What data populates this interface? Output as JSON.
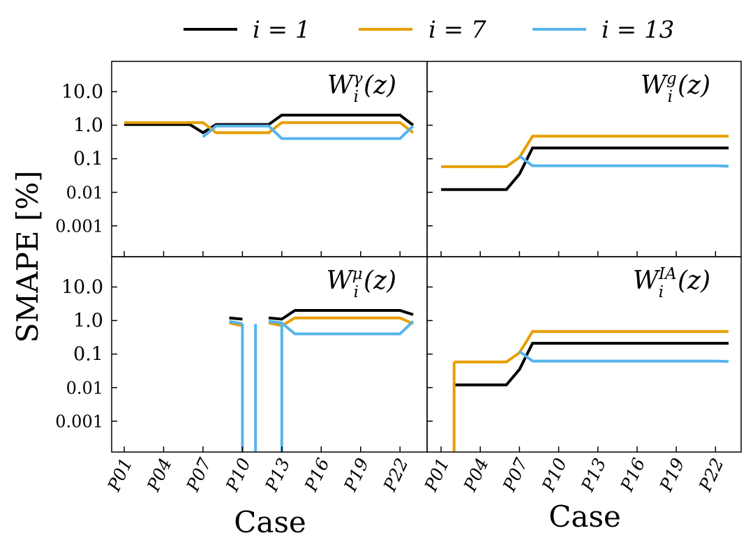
{
  "legend": [
    {
      "label": "i = 1",
      "color": "#000000"
    },
    {
      "label": "i = 7",
      "color": "#E69F00"
    },
    {
      "label": "i = 13",
      "color": "#56B4E9"
    }
  ],
  "ylabel": "SMAPE [%]",
  "xlabel": "Case",
  "chart_data": {
    "type": "line",
    "yscale": "log",
    "ylim": [
      0.00012,
      80
    ],
    "yticks": [
      {
        "v": 10,
        "label": "10.0"
      },
      {
        "v": 1,
        "label": "1.0"
      },
      {
        "v": 0.1,
        "label": "0.1"
      },
      {
        "v": 0.01,
        "label": "0.01"
      },
      {
        "v": 0.001,
        "label": "0.001"
      }
    ],
    "x_categories": [
      "P01",
      "P02",
      "P03",
      "P04",
      "P05",
      "P06",
      "P07",
      "P08",
      "P09",
      "P10",
      "P11",
      "P12",
      "P13",
      "P14",
      "P15",
      "P16",
      "P17",
      "P18",
      "P19",
      "P20",
      "P21",
      "P22",
      "P23"
    ],
    "xtick_labels": [
      "P01",
      "P04",
      "P07",
      "P10",
      "P13",
      "P16",
      "P19",
      "P22"
    ],
    "panels": [
      {
        "id": "gamma",
        "title_base": "W",
        "title_sup": "γ",
        "title_sub": "i",
        "title_tail": "(z)",
        "series": [
          {
            "name": "i = 1",
            "color": "#000000",
            "values": [
              1.05,
              1.05,
              1.05,
              1.05,
              1.05,
              1.05,
              0.6,
              1.05,
              1.05,
              1.05,
              1.05,
              1.05,
              2.0,
              2.0,
              2.0,
              2.0,
              2.0,
              2.0,
              2.0,
              2.0,
              2.0,
              2.0,
              1.0
            ]
          },
          {
            "name": "i = 7",
            "color": "#E69F00",
            "values": [
              1.2,
              1.2,
              1.2,
              1.2,
              1.2,
              1.2,
              1.2,
              0.6,
              0.6,
              0.6,
              0.6,
              0.6,
              1.2,
              1.2,
              1.2,
              1.2,
              1.2,
              1.2,
              1.2,
              1.2,
              1.2,
              1.2,
              0.6
            ]
          },
          {
            "name": "i = 13",
            "color": "#56B4E9",
            "values": [
              null,
              null,
              null,
              null,
              null,
              null,
              0.45,
              0.95,
              0.95,
              0.95,
              0.95,
              0.95,
              0.4,
              0.4,
              0.4,
              0.4,
              0.4,
              0.4,
              0.4,
              0.4,
              0.4,
              0.4,
              0.95
            ]
          }
        ]
      },
      {
        "id": "g",
        "title_base": "W",
        "title_sup": "g",
        "title_sub": "i",
        "title_tail": "(z)",
        "series": [
          {
            "name": "i = 1",
            "color": "#000000",
            "values": [
              0.012,
              0.012,
              0.012,
              0.012,
              0.012,
              0.012,
              0.035,
              0.21,
              0.21,
              0.21,
              0.21,
              0.21,
              0.21,
              0.21,
              0.21,
              0.21,
              0.21,
              0.21,
              0.21,
              0.21,
              0.21,
              0.21,
              0.21
            ]
          },
          {
            "name": "i = 7",
            "color": "#E69F00",
            "values": [
              0.058,
              0.058,
              0.058,
              0.058,
              0.058,
              0.058,
              0.11,
              0.47,
              0.47,
              0.47,
              0.47,
              0.47,
              0.47,
              0.47,
              0.47,
              0.47,
              0.47,
              0.47,
              0.47,
              0.47,
              0.47,
              0.47,
              0.47
            ]
          },
          {
            "name": "i = 13",
            "color": "#56B4E9",
            "values": [
              null,
              null,
              null,
              null,
              null,
              null,
              0.12,
              0.062,
              0.062,
              0.062,
              0.062,
              0.062,
              0.062,
              0.062,
              0.062,
              0.062,
              0.062,
              0.062,
              0.062,
              0.062,
              0.062,
              0.062,
              0.06
            ]
          }
        ]
      },
      {
        "id": "mu",
        "title_base": "W",
        "title_sup": "μ",
        "title_sub": "i",
        "title_tail": "(z)",
        "series": [
          {
            "name": "i = 1",
            "color": "#000000",
            "values": [
              null,
              null,
              null,
              null,
              null,
              null,
              null,
              null,
              1.2,
              1.1,
              null,
              1.2,
              1.1,
              2.0,
              2.0,
              2.0,
              2.0,
              2.0,
              2.0,
              2.0,
              2.0,
              2.0,
              1.5
            ]
          },
          {
            "name": "i = 7",
            "color": "#E69F00",
            "values": [
              null,
              null,
              null,
              null,
              null,
              null,
              null,
              null,
              0.85,
              0.7,
              null,
              0.85,
              0.7,
              1.2,
              1.2,
              1.2,
              1.2,
              1.2,
              1.2,
              1.2,
              1.2,
              1.2,
              0.8
            ]
          },
          {
            "name": "i = 13",
            "color": "#56B4E9",
            "values": [
              null,
              null,
              null,
              null,
              null,
              null,
              null,
              null,
              0.95,
              0.8,
              null,
              0.95,
              0.85,
              0.4,
              0.4,
              0.4,
              0.4,
              0.4,
              0.4,
              0.4,
              0.4,
              0.4,
              0.95
            ]
          }
        ],
        "drops": [
          {
            "series": "i = 13",
            "color": "#56B4E9",
            "at": [
              9,
              10,
              12
            ]
          }
        ]
      },
      {
        "id": "ia",
        "title_base": "W",
        "title_sup": "IA",
        "title_sub": "i",
        "title_tail": "(z)",
        "series": [
          {
            "name": "i = 1",
            "color": "#000000",
            "values": [
              null,
              0.012,
              0.012,
              0.012,
              0.012,
              0.012,
              0.035,
              0.21,
              0.21,
              0.21,
              0.21,
              0.21,
              0.21,
              0.21,
              0.21,
              0.21,
              0.21,
              0.21,
              0.21,
              0.21,
              0.21,
              0.21,
              0.21
            ]
          },
          {
            "name": "i = 7",
            "color": "#E69F00",
            "values": [
              null,
              0.058,
              0.058,
              0.058,
              0.058,
              0.058,
              0.11,
              0.47,
              0.47,
              0.47,
              0.47,
              0.47,
              0.47,
              0.47,
              0.47,
              0.47,
              0.47,
              0.47,
              0.47,
              0.47,
              0.47,
              0.47,
              0.47
            ]
          },
          {
            "name": "i = 13",
            "color": "#56B4E9",
            "values": [
              null,
              null,
              null,
              null,
              null,
              null,
              0.12,
              0.062,
              0.062,
              0.062,
              0.062,
              0.062,
              0.062,
              0.062,
              0.062,
              0.062,
              0.062,
              0.062,
              0.062,
              0.062,
              0.062,
              0.062,
              0.06
            ]
          }
        ],
        "drops": [
          {
            "series": "i = 7",
            "color": "#E69F00",
            "at": [
              2
            ]
          }
        ]
      }
    ]
  }
}
